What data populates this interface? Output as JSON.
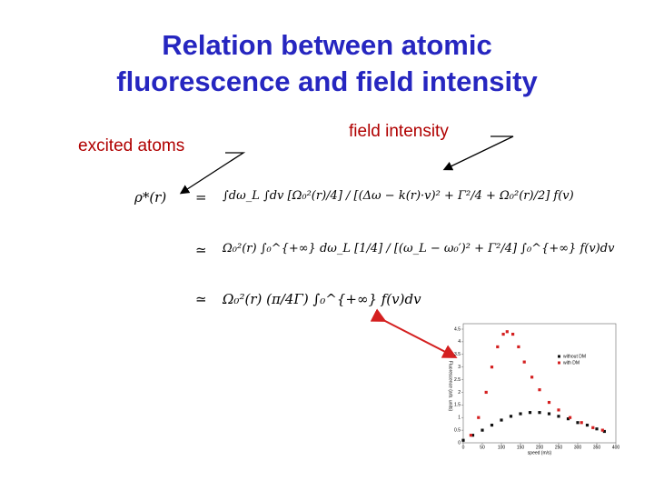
{
  "title": [
    "Relation between atomic",
    "fluorescence and field intensity"
  ],
  "labels": {
    "excited_atoms": "excited atoms",
    "field_intensity": "field intensity"
  },
  "equations": [
    {
      "lhs": "ρ*(r)",
      "rel": "=",
      "rhs": "∫dω_L ∫dv [Ω₀²(r)/4] / [(Δω − k(r)·v)² + Γ²/4 + Ω₀²(r)/2] f(v)"
    },
    {
      "lhs": "",
      "rel": "≃",
      "rhs": "Ω₀²(r) ∫₀^{+∞} dω_L [1/4] / [(ω_L − ω₀′)² + Γ²/4] ∫₀^{+∞} f(v)dv"
    },
    {
      "lhs": "",
      "rel": "≃",
      "rhs": "Ω₀²(r) (π/4Γ) ∫₀^{+∞} f(v)dv"
    }
  ],
  "chart_data": {
    "type": "scatter",
    "x_label": "speed (m/s)",
    "y_label": "Fluorescence (arb. units)",
    "xlim": [
      0,
      400
    ],
    "xticks": [
      0,
      50,
      100,
      150,
      200,
      250,
      300,
      350,
      400
    ],
    "ylim": [
      0,
      4.5
    ],
    "yticks": [
      0,
      0.5,
      1,
      1.5,
      2,
      2.5,
      3,
      3.5,
      4,
      4.5
    ],
    "legend": "upper right",
    "series": [
      {
        "name": "without DM",
        "color": "#111111",
        "x": [
          0,
          25,
          50,
          75,
          100,
          125,
          150,
          175,
          200,
          225,
          250,
          275,
          300,
          325,
          350,
          370
        ],
        "values": [
          0.1,
          0.3,
          0.5,
          0.7,
          0.9,
          1.05,
          1.15,
          1.2,
          1.2,
          1.15,
          1.05,
          0.95,
          0.8,
          0.7,
          0.55,
          0.45
        ]
      },
      {
        "name": "with DM",
        "color": "#d42020",
        "x": [
          20,
          40,
          60,
          75,
          90,
          105,
          115,
          130,
          145,
          160,
          180,
          200,
          225,
          250,
          280,
          310,
          340,
          365
        ],
        "values": [
          0.3,
          1.0,
          2.0,
          3.0,
          3.8,
          4.3,
          4.4,
          4.3,
          3.8,
          3.2,
          2.6,
          2.1,
          1.6,
          1.3,
          1.0,
          0.8,
          0.6,
          0.5
        ]
      }
    ]
  }
}
